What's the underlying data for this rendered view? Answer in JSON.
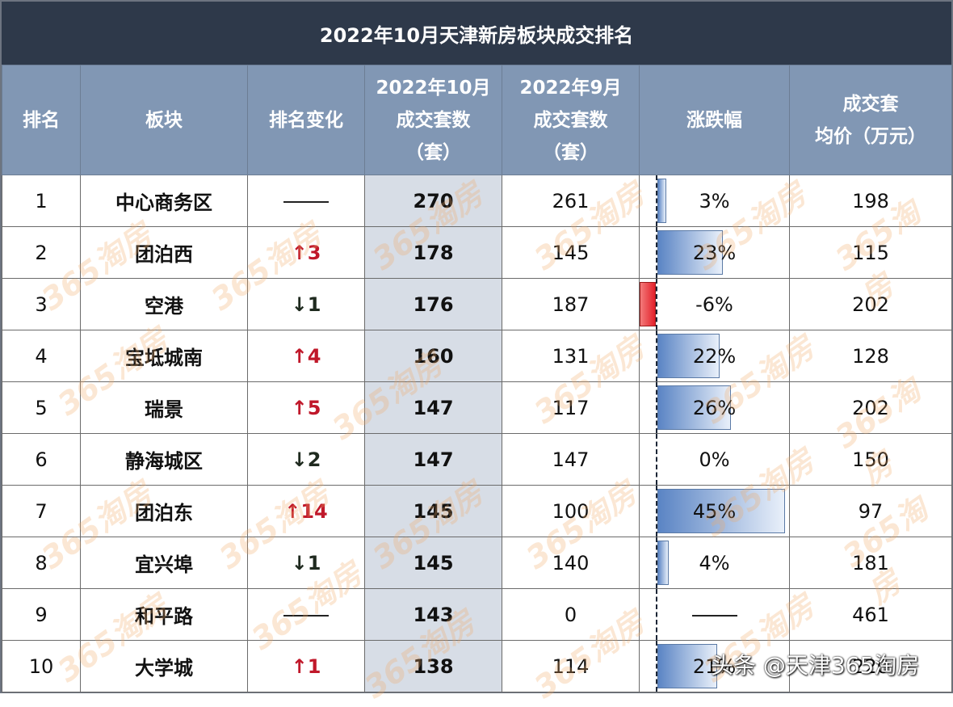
{
  "title": "2022年10月天津新房板块成交排名",
  "headers": {
    "rank": "排名",
    "block": "板块",
    "rank_change": "排名变化",
    "oct_l1": "2022年10月",
    "oct_l2": "成交套数",
    "oct_l3": "（套）",
    "sep_l1": "2022年9月",
    "sep_l2": "成交套数",
    "sep_l3": "（套）",
    "change_pct": "涨跌幅",
    "price_l1": "成交套",
    "price_l2": "均价（万元）"
  },
  "rows": [
    {
      "rank": "1",
      "block": "中心商务区",
      "change_dir": "none",
      "change": "",
      "oct": "270",
      "sep": "261",
      "pct": "3%",
      "pct_value": 3,
      "price": "198"
    },
    {
      "rank": "2",
      "block": "团泊西",
      "change_dir": "up",
      "change": "↑3",
      "oct": "178",
      "sep": "145",
      "pct": "23%",
      "pct_value": 23,
      "price": "115"
    },
    {
      "rank": "3",
      "block": "空港",
      "change_dir": "down",
      "change": "↓1",
      "oct": "176",
      "sep": "187",
      "pct": "-6%",
      "pct_value": -6,
      "price": "202"
    },
    {
      "rank": "4",
      "block": "宝坻城南",
      "change_dir": "up",
      "change": "↑4",
      "oct": "160",
      "sep": "131",
      "pct": "22%",
      "pct_value": 22,
      "price": "128"
    },
    {
      "rank": "5",
      "block": "瑞景",
      "change_dir": "up",
      "change": "↑5",
      "oct": "147",
      "sep": "117",
      "pct": "26%",
      "pct_value": 26,
      "price": "202"
    },
    {
      "rank": "6",
      "block": "静海城区",
      "change_dir": "down",
      "change": "↓2",
      "oct": "147",
      "sep": "147",
      "pct": "0%",
      "pct_value": 0,
      "price": "150"
    },
    {
      "rank": "7",
      "block": "团泊东",
      "change_dir": "up",
      "change": "↑14",
      "oct": "145",
      "sep": "100",
      "pct": "45%",
      "pct_value": 45,
      "price": "97"
    },
    {
      "rank": "8",
      "block": "宜兴埠",
      "change_dir": "down",
      "change": "↓1",
      "oct": "145",
      "sep": "140",
      "pct": "4%",
      "pct_value": 4,
      "price": "181"
    },
    {
      "rank": "9",
      "block": "和平路",
      "change_dir": "none",
      "change": "",
      "oct": "143",
      "sep": "0",
      "pct": "",
      "pct_value": null,
      "price": "461"
    },
    {
      "rank": "10",
      "block": "大学城",
      "change_dir": "up",
      "change": "↑1",
      "oct": "138",
      "sep": "114",
      "pct": "21%",
      "pct_value": 21,
      "price": "220"
    }
  ],
  "colors": {
    "title_bg": "#2e394a",
    "header_bg": "#8197b4",
    "oct_col_bg": "#d7dde6",
    "up_color": "#c0182a",
    "bar_positive": "#5a84c4",
    "bar_negative": "#e3202a"
  },
  "watermark": "365淘房",
  "footer_watermark": "头条 @天津365淘房"
}
